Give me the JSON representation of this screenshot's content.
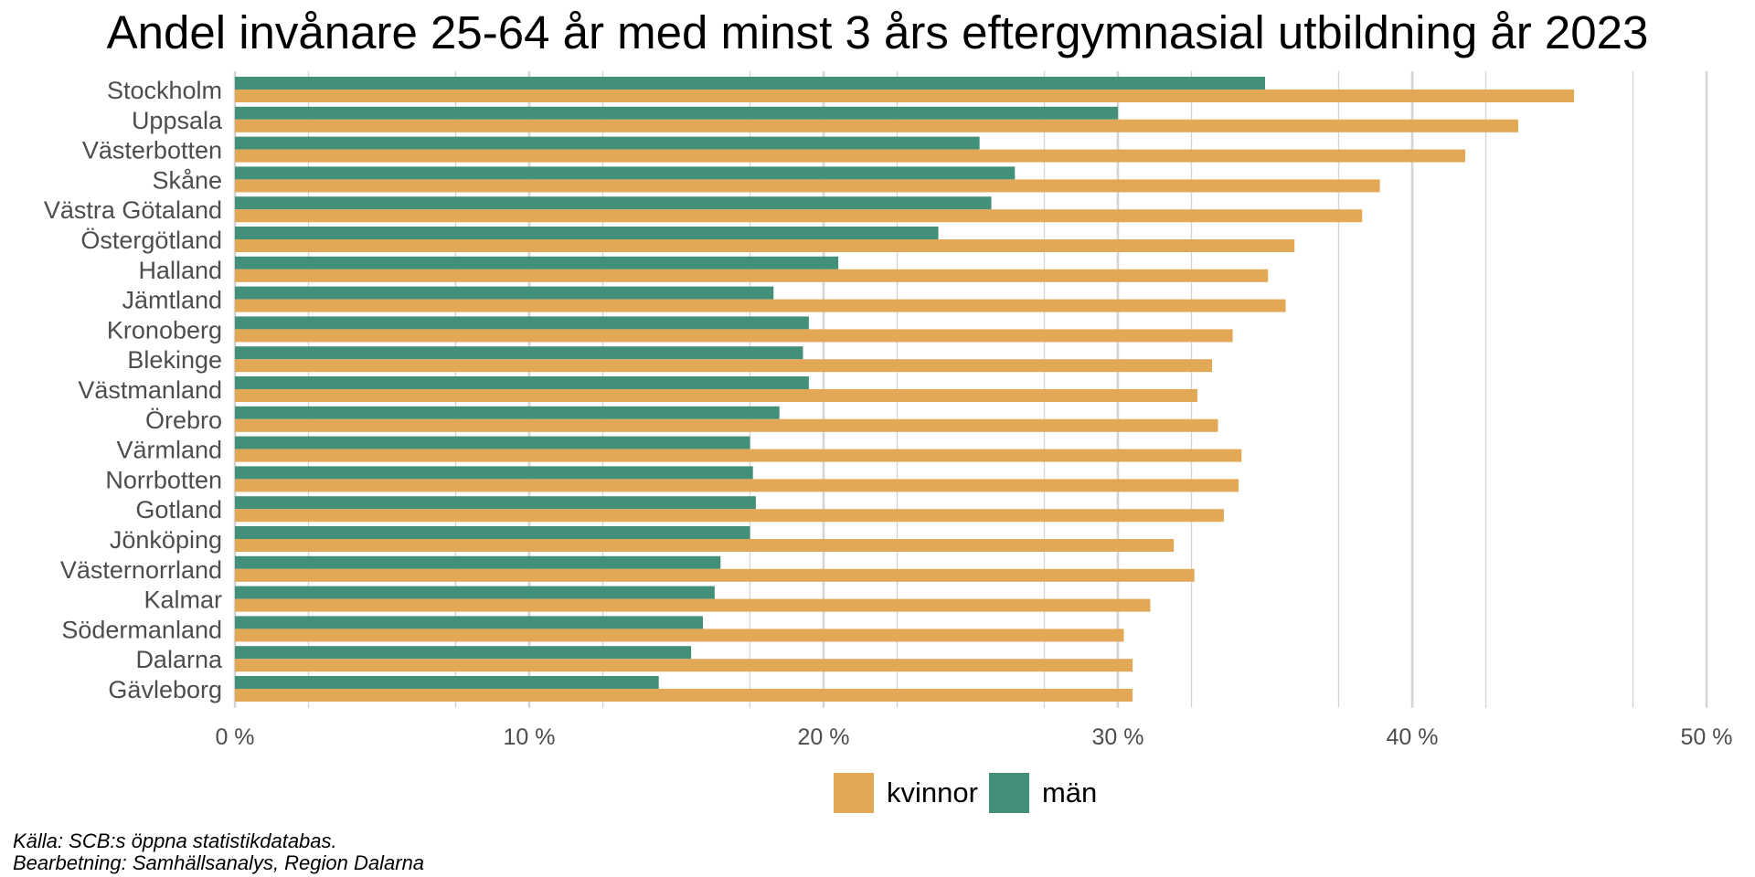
{
  "colors": {
    "kvinnor": "#E2A855",
    "man": "#43907A",
    "grid": "#d4d4d4",
    "axis_text": "#4d4d4d"
  },
  "caption": {
    "source": "Källa: SCB:s öppna statistikdatabas.",
    "processing": "Bearbetning: Samhällsanalys, Region Dalarna"
  },
  "chart_data": {
    "type": "bar",
    "orientation": "horizontal",
    "title": "Andel invånare 25-64 år med minst 3 års eftergymnasial utbildning år 2023",
    "xlabel": "",
    "ylabel": "",
    "xlim": [
      0,
      50
    ],
    "xticks": [
      0,
      10,
      20,
      30,
      40,
      50
    ],
    "xtick_labels": [
      "0 %",
      "10 %",
      "20 %",
      "30 %",
      "40 %",
      "50 %"
    ],
    "grid": true,
    "legend_position": "bottom",
    "categories": [
      "Stockholm",
      "Uppsala",
      "Västerbotten",
      "Skåne",
      "Västra Götaland",
      "Östergötland",
      "Halland",
      "Jämtland",
      "Kronoberg",
      "Blekinge",
      "Västmanland",
      "Örebro",
      "Värmland",
      "Norrbotten",
      "Gotland",
      "Jönköping",
      "Västernorrland",
      "Kalmar",
      "Södermanland",
      "Dalarna",
      "Gävleborg"
    ],
    "series": [
      {
        "name": "kvinnor",
        "color": "#E2A855",
        "values": [
          45.5,
          43.6,
          41.8,
          38.9,
          38.3,
          36.0,
          35.1,
          35.7,
          33.9,
          33.2,
          32.7,
          33.4,
          34.2,
          34.1,
          33.6,
          31.9,
          32.6,
          31.1,
          30.2,
          30.5,
          30.5
        ]
      },
      {
        "name": "män",
        "color": "#43907A",
        "values": [
          35.0,
          30.0,
          25.3,
          26.5,
          25.7,
          23.9,
          20.5,
          18.3,
          19.5,
          19.3,
          19.5,
          18.5,
          17.5,
          17.6,
          17.7,
          17.5,
          16.5,
          16.3,
          15.9,
          15.5,
          14.4
        ]
      }
    ]
  }
}
